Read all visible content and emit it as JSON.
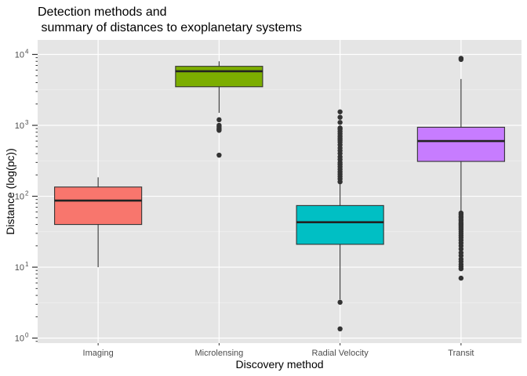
{
  "chart_data": {
    "type": "boxplot",
    "title": [
      "Detection methods and",
      " summary of distances to exoplanetary systems"
    ],
    "xlabel": "Discovery method",
    "ylabel": "Distance (log(pc))",
    "yscale": "log10",
    "ylim": [
      0.85,
      16000
    ],
    "yticks": [
      {
        "value": 1,
        "base": "10",
        "exp": "0"
      },
      {
        "value": 10,
        "base": "10",
        "exp": "1"
      },
      {
        "value": 100,
        "base": "10",
        "exp": "2"
      },
      {
        "value": 1000,
        "base": "10",
        "exp": "3"
      },
      {
        "value": 10000,
        "base": "10",
        "exp": "4"
      }
    ],
    "grid": true,
    "panel_background": "#e5e5e5",
    "categories": [
      "Imaging",
      "Microlensing",
      "Radial Velocity",
      "Transit"
    ],
    "boxes": [
      {
        "name": "Imaging",
        "color": "#f8766d",
        "whisker_low": 10,
        "q1": 40,
        "median": 87,
        "q3": 135,
        "whisker_high": 185,
        "outliers": []
      },
      {
        "name": "Microlensing",
        "color": "#7cae00",
        "whisker_low": 1500,
        "q1": 3500,
        "median": 5800,
        "q3": 6800,
        "whisker_high": 8000,
        "outliers": [
          1200,
          1000,
          950,
          900,
          870,
          850,
          380
        ]
      },
      {
        "name": "Radial Velocity",
        "color": "#00bfc4",
        "whisker_low": 3.5,
        "q1": 21,
        "median": 43,
        "q3": 74,
        "whisker_high": 148,
        "outliers": [
          1.35,
          3.2,
          160,
          175,
          190,
          205,
          220,
          240,
          260,
          280,
          300,
          330,
          360,
          400,
          440,
          480,
          530,
          580,
          620,
          660,
          700,
          760,
          820,
          880,
          920,
          1100,
          1300,
          1550
        ]
      },
      {
        "name": "Transit",
        "color": "#c77cff",
        "whisker_low": 60,
        "q1": 310,
        "median": 600,
        "q3": 940,
        "whisker_high": 4500,
        "outliers": [
          8500,
          8800,
          58,
          55,
          52,
          50,
          47,
          45,
          42,
          40,
          38,
          36,
          34,
          32,
          30,
          28,
          26,
          24,
          22,
          20,
          18,
          16,
          14.5,
          13,
          12,
          11,
          10.2,
          9.5,
          7
        ]
      }
    ]
  }
}
